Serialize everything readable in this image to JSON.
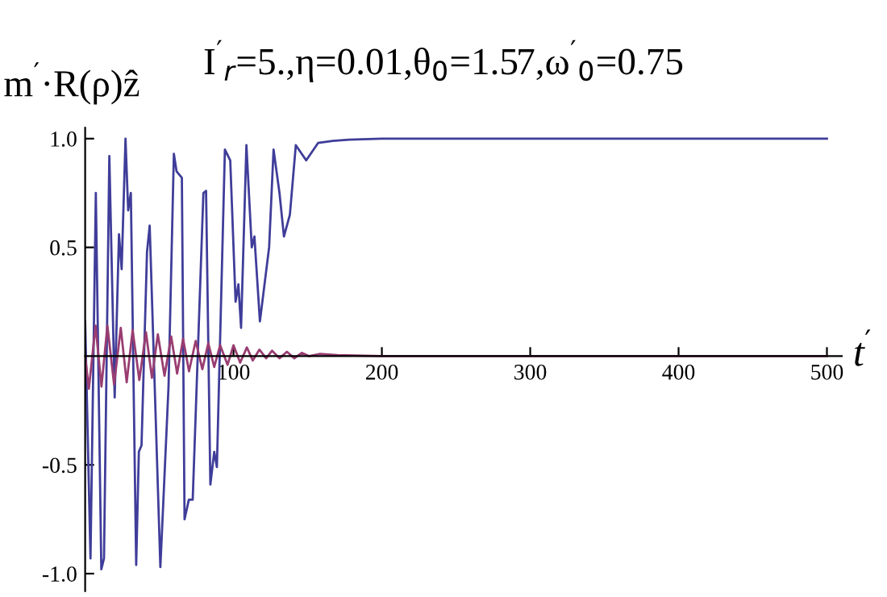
{
  "chart_data": {
    "type": "line",
    "title": "I$^{′}$$_{r}$=5.,η=0.01,θ$_{0}$=1.57,ω$^{′}$$_{0}$=0.75",
    "xlabel": "t$^{′}$",
    "ylabel": "m$^{′}$·R(ρ)ẑ",
    "xlim": [
      0,
      510
    ],
    "ylim": [
      -1.08,
      1.05
    ],
    "xticks": [
      100,
      200,
      300,
      400,
      500
    ],
    "yticks": [
      {
        "value": -1.0,
        "label": "-1.0"
      },
      {
        "value": -0.5,
        "label": "-0.5"
      },
      {
        "value": 0.5,
        "label": "0.5"
      },
      {
        "value": 1.0,
        "label": "1.0"
      }
    ],
    "grid": false,
    "marker": "none",
    "line_style": "solid",
    "series": [
      {
        "color": "#3f3d99",
        "x": [
          0,
          3.6,
          7.2,
          10.9,
          12.7,
          16.3,
          19.9,
          22.8,
          24.6,
          27.2,
          29.0,
          30.8,
          34.4,
          36.2,
          38.0,
          41.7,
          43.5,
          50.7,
          56.2,
          59.8,
          61.6,
          65.2,
          67.0,
          69.9,
          72.5,
          79.7,
          81.5,
          84.4,
          87.0,
          88.8,
          94.2,
          97.8,
          101.4,
          103.3,
          105.1,
          108.7,
          112.3,
          114.1,
          117.8,
          124,
          127,
          131,
          134,
          138,
          142,
          149,
          157,
          167,
          178,
          200,
          500
        ],
        "values": [
          0.16,
          -0.93,
          0.75,
          -0.98,
          -0.93,
          0.92,
          -0.19,
          0.56,
          0.4,
          1.0,
          0.67,
          0.75,
          -0.96,
          -0.44,
          -0.41,
          0.48,
          0.6,
          -0.97,
          -0.14,
          0.93,
          0.85,
          0.82,
          -0.75,
          -0.66,
          -0.66,
          0.75,
          0.76,
          -0.59,
          -0.44,
          -0.51,
          0.95,
          0.9,
          0.25,
          0.33,
          0.13,
          0.97,
          0.5,
          0.55,
          0.16,
          0.5,
          0.95,
          0.75,
          0.55,
          0.65,
          0.97,
          0.9,
          0.98,
          0.99,
          0.995,
          1.0,
          1.0
        ]
      },
      {
        "color": "#993d71",
        "x": [
          0,
          2.5,
          7,
          11,
          15,
          19.5,
          24,
          28,
          32,
          36.5,
          41,
          45,
          49,
          53.5,
          58,
          62,
          66,
          70,
          74.5,
          79,
          83,
          87,
          91,
          96,
          100,
          104.5,
          109,
          113,
          117.5,
          122,
          126,
          131,
          136,
          141,
          146,
          151,
          158,
          170,
          200,
          500
        ],
        "values": [
          0,
          -0.15,
          0.14,
          -0.14,
          0.14,
          -0.13,
          0.13,
          -0.12,
          0.12,
          -0.11,
          0.11,
          -0.1,
          0.1,
          -0.09,
          0.09,
          -0.08,
          0.08,
          -0.07,
          0.07,
          -0.06,
          0.06,
          -0.05,
          0.05,
          -0.04,
          0.05,
          -0.03,
          0.04,
          -0.02,
          0.03,
          -0.01,
          0.025,
          -0.01,
          0.02,
          -0.01,
          0.015,
          0,
          0.01,
          0.005,
          0,
          0
        ]
      }
    ]
  }
}
